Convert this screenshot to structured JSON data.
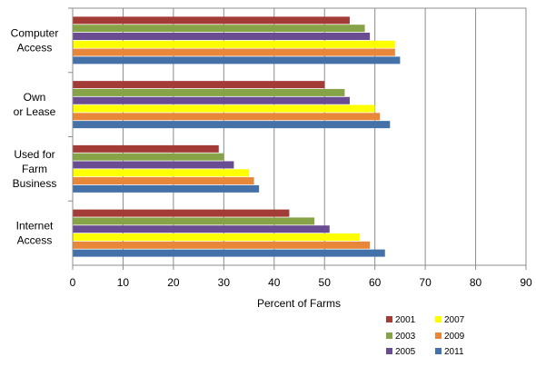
{
  "chart_data": {
    "type": "bar",
    "orientation": "horizontal",
    "categories": [
      [
        "Computer",
        "Access"
      ],
      [
        "Own",
        "or Lease"
      ],
      [
        "Used for",
        "Farm",
        "Business"
      ],
      [
        "Internet",
        "Access"
      ]
    ],
    "series": [
      {
        "name": "2001",
        "color": "#A33B36",
        "values": [
          55,
          50,
          29,
          43
        ]
      },
      {
        "name": "2003",
        "color": "#86A447",
        "values": [
          58,
          54,
          30,
          48
        ]
      },
      {
        "name": "2005",
        "color": "#6A4C93",
        "values": [
          59,
          55,
          32,
          51
        ]
      },
      {
        "name": "2007",
        "color": "#FFFF00",
        "values": [
          64,
          60,
          35,
          57
        ]
      },
      {
        "name": "2009",
        "color": "#E8873A",
        "values": [
          64,
          61,
          36,
          59
        ]
      },
      {
        "name": "2011",
        "color": "#4472A8",
        "values": [
          65,
          63,
          37,
          62
        ]
      }
    ],
    "xlabel": "Percent of Farms",
    "xlim": [
      0,
      90
    ],
    "xticks": [
      0,
      10,
      20,
      30,
      40,
      50,
      60,
      70,
      80,
      90
    ],
    "grid": "vertical",
    "legend_position": "bottom-right",
    "legend_layout": [
      [
        "2001",
        "2007"
      ],
      [
        "2003",
        "2009"
      ],
      [
        "2005",
        "2011"
      ]
    ]
  }
}
